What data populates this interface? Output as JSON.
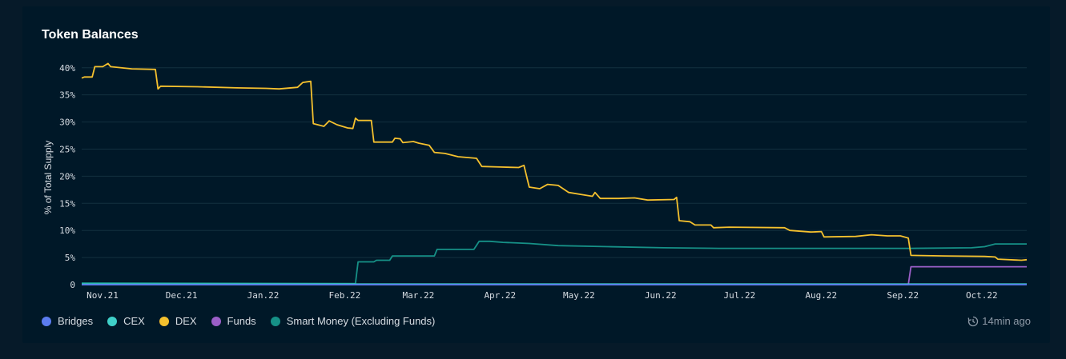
{
  "card": {
    "title": "Token Balances"
  },
  "updated": {
    "label": "14min ago",
    "icon": "refresh-clock-icon"
  },
  "colors": {
    "Bridges": "#5b7cf0",
    "CEX": "#3fd0c9",
    "DEX": "#f5c12e",
    "Funds": "#9b5fc8",
    "Smart Money (Excluding Funds)": "#169187"
  },
  "chart_data": {
    "type": "line",
    "title": "Token Balances",
    "xlabel": "",
    "ylabel": "% of Total Supply",
    "ylim": [
      0,
      41
    ],
    "yticks": [
      0,
      5,
      10,
      15,
      20,
      25,
      30,
      35,
      40
    ],
    "ytick_labels": [
      "0",
      "5%",
      "10%",
      "15%",
      "20%",
      "25%",
      "30%",
      "35%",
      "40%"
    ],
    "xlim": [
      "2021-11-01",
      "2022-10-26"
    ],
    "xticks": [
      "2021-11-01",
      "2021-12-01",
      "2022-01-01",
      "2022-02-01",
      "2022-03-01",
      "2022-04-01",
      "2022-05-01",
      "2022-06-01",
      "2022-07-01",
      "2022-08-01",
      "2022-09-01",
      "2022-10-01"
    ],
    "xtick_labels": [
      "Nov.21",
      "Dec.21",
      "Jan.22",
      "Feb.22",
      "Mar.22",
      "Apr.22",
      "May.22",
      "Jun.22",
      "Jul.22",
      "Aug.22",
      "Sep.22",
      "Oct.22"
    ],
    "grid": true,
    "legend_position": "bottom-left",
    "series": [
      {
        "name": "DEX",
        "points": [
          [
            "2021-11-01",
            38.1
          ],
          [
            "2021-11-02",
            38.3
          ],
          [
            "2021-11-05",
            38.3
          ],
          [
            "2021-11-06",
            40.2
          ],
          [
            "2021-11-09",
            40.2
          ],
          [
            "2021-11-11",
            40.8
          ],
          [
            "2021-11-12",
            40.2
          ],
          [
            "2021-11-20",
            39.8
          ],
          [
            "2021-11-29",
            39.7
          ],
          [
            "2021-11-30",
            36.1
          ],
          [
            "2021-12-01",
            36.6
          ],
          [
            "2021-12-15",
            36.5
          ],
          [
            "2021-12-30",
            36.3
          ],
          [
            "2022-01-10",
            36.2
          ],
          [
            "2022-01-15",
            36.1
          ],
          [
            "2022-01-22",
            36.4
          ],
          [
            "2022-01-24",
            37.3
          ],
          [
            "2022-01-27",
            37.5
          ],
          [
            "2022-01-28",
            29.7
          ],
          [
            "2022-02-01",
            29.2
          ],
          [
            "2022-02-03",
            30.2
          ],
          [
            "2022-02-06",
            29.5
          ],
          [
            "2022-02-10",
            28.9
          ],
          [
            "2022-02-12",
            28.8
          ],
          [
            "2022-02-13",
            30.7
          ],
          [
            "2022-02-14",
            30.3
          ],
          [
            "2022-02-19",
            30.3
          ],
          [
            "2022-02-20",
            26.3
          ],
          [
            "2022-02-27",
            26.3
          ],
          [
            "2022-02-28",
            27.0
          ],
          [
            "2022-03-02",
            26.9
          ],
          [
            "2022-03-03",
            26.2
          ],
          [
            "2022-03-07",
            26.4
          ],
          [
            "2022-03-09",
            26.1
          ],
          [
            "2022-03-13",
            25.7
          ],
          [
            "2022-03-15",
            24.4
          ],
          [
            "2022-03-19",
            24.2
          ],
          [
            "2022-03-24",
            23.6
          ],
          [
            "2022-03-31",
            23.3
          ],
          [
            "2022-04-02",
            21.8
          ],
          [
            "2022-04-09",
            21.7
          ],
          [
            "2022-04-16",
            21.6
          ],
          [
            "2022-04-18",
            22.0
          ],
          [
            "2022-04-20",
            18.0
          ],
          [
            "2022-04-24",
            17.7
          ],
          [
            "2022-04-27",
            18.5
          ],
          [
            "2022-05-01",
            18.3
          ],
          [
            "2022-05-05",
            17.0
          ],
          [
            "2022-05-10",
            16.6
          ],
          [
            "2022-05-14",
            16.3
          ],
          [
            "2022-05-15",
            17.0
          ],
          [
            "2022-05-17",
            15.9
          ],
          [
            "2022-05-24",
            15.9
          ],
          [
            "2022-05-30",
            16.0
          ],
          [
            "2022-06-04",
            15.6
          ],
          [
            "2022-06-14",
            15.7
          ],
          [
            "2022-06-15",
            16.1
          ],
          [
            "2022-06-16",
            11.8
          ],
          [
            "2022-06-20",
            11.6
          ],
          [
            "2022-06-22",
            11.0
          ],
          [
            "2022-06-28",
            11.0
          ],
          [
            "2022-06-29",
            10.5
          ],
          [
            "2022-07-05",
            10.6
          ],
          [
            "2022-07-26",
            10.5
          ],
          [
            "2022-07-28",
            10.0
          ],
          [
            "2022-08-05",
            9.7
          ],
          [
            "2022-08-09",
            9.8
          ],
          [
            "2022-08-10",
            8.8
          ],
          [
            "2022-08-22",
            8.9
          ],
          [
            "2022-08-28",
            9.2
          ],
          [
            "2022-09-03",
            9.0
          ],
          [
            "2022-09-08",
            9.0
          ],
          [
            "2022-09-11",
            8.6
          ],
          [
            "2022-09-12",
            5.4
          ],
          [
            "2022-09-25",
            5.3
          ],
          [
            "2022-10-10",
            5.2
          ],
          [
            "2022-10-14",
            5.1
          ],
          [
            "2022-10-15",
            4.7
          ],
          [
            "2022-10-24",
            4.5
          ],
          [
            "2022-10-26",
            4.6
          ]
        ]
      },
      {
        "name": "Smart Money (Excluding Funds)",
        "points": [
          [
            "2021-11-01",
            0.3
          ],
          [
            "2022-02-13",
            0.2
          ],
          [
            "2022-02-14",
            4.2
          ],
          [
            "2022-02-20",
            4.2
          ],
          [
            "2022-02-21",
            4.5
          ],
          [
            "2022-02-26",
            4.5
          ],
          [
            "2022-02-27",
            5.3
          ],
          [
            "2022-03-15",
            5.3
          ],
          [
            "2022-03-16",
            6.5
          ],
          [
            "2022-03-30",
            6.5
          ],
          [
            "2022-04-01",
            8.0
          ],
          [
            "2022-04-05",
            8.0
          ],
          [
            "2022-04-10",
            7.8
          ],
          [
            "2022-04-20",
            7.6
          ],
          [
            "2022-05-01",
            7.2
          ],
          [
            "2022-05-20",
            7.0
          ],
          [
            "2022-06-10",
            6.8
          ],
          [
            "2022-07-01",
            6.7
          ],
          [
            "2022-09-12",
            6.7
          ],
          [
            "2022-10-05",
            6.8
          ],
          [
            "2022-10-10",
            7.0
          ],
          [
            "2022-10-14",
            7.5
          ],
          [
            "2022-10-26",
            7.5
          ]
        ]
      },
      {
        "name": "Funds",
        "points": [
          [
            "2021-11-01",
            0
          ],
          [
            "2022-09-11",
            0
          ],
          [
            "2022-09-12",
            3.3
          ],
          [
            "2022-10-26",
            3.3
          ]
        ]
      },
      {
        "name": "CEX",
        "points": [
          [
            "2021-11-01",
            0.1
          ],
          [
            "2022-10-26",
            0.1
          ]
        ]
      },
      {
        "name": "Bridges",
        "points": [
          [
            "2021-11-01",
            0.0
          ],
          [
            "2022-10-26",
            0.0
          ]
        ]
      }
    ]
  }
}
